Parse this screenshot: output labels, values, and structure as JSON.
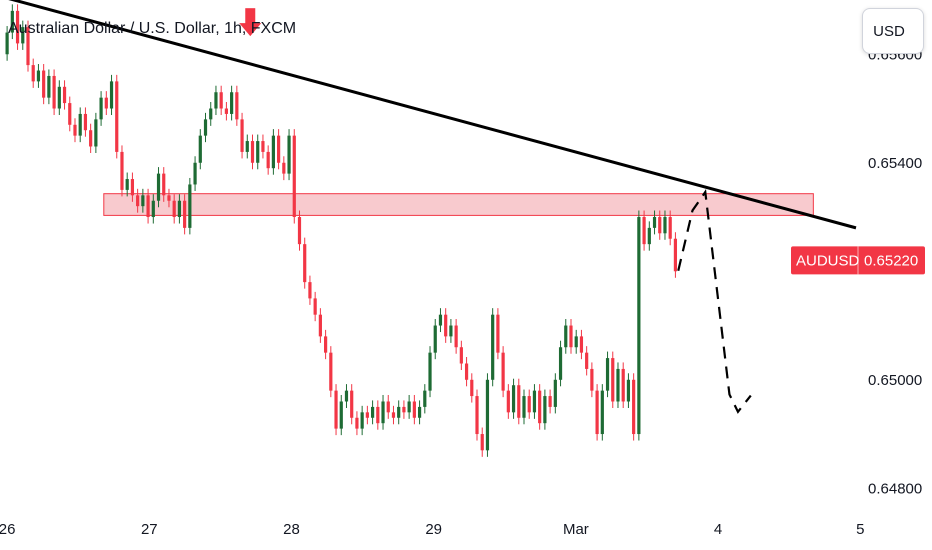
{
  "header": {
    "title": "Australian Dollar / U.S. Dollar, 1h, FXCM",
    "currency_button": "USD"
  },
  "price_badge": {
    "symbol": "AUDUSD",
    "price": "0.65220",
    "color": "#f23645"
  },
  "colors": {
    "up": "#1e6b34",
    "down": "#f23645",
    "zone_fill": "#f4a7ae",
    "zone_stroke": "#f23645",
    "trendline": "#000000",
    "arrow": "#f23645"
  },
  "chart_data": {
    "type": "candlestick",
    "title": "Australian Dollar / U.S. Dollar, 1h, FXCM",
    "y_tick_labels": [
      "0.65600",
      "0.65400",
      "0.65000",
      "0.64800"
    ],
    "ylim": [
      0.6476,
      0.657
    ],
    "x_tick_labels": [
      "26",
      "27",
      "28",
      "29",
      "Mar",
      "4",
      "5"
    ],
    "x_ticks_day": [
      0,
      1,
      2,
      3,
      4,
      5,
      6
    ],
    "xlim_day": [
      -0.05,
      5.97
    ],
    "candles": [
      [
        0.656,
        0.6564
      ],
      [
        0.6564,
        0.6568
      ],
      [
        0.6568,
        0.6562
      ],
      [
        0.6562,
        0.6565
      ],
      [
        0.6565,
        0.6558
      ],
      [
        0.6558,
        0.6555
      ],
      [
        0.6555,
        0.6557
      ],
      [
        0.6557,
        0.6552
      ],
      [
        0.6552,
        0.6556
      ],
      [
        0.6556,
        0.655
      ],
      [
        0.655,
        0.6554
      ],
      [
        0.6554,
        0.6551
      ],
      [
        0.6551,
        0.6547
      ],
      [
        0.6547,
        0.6545
      ],
      [
        0.6545,
        0.6549
      ],
      [
        0.6549,
        0.6546
      ],
      [
        0.6546,
        0.6543
      ],
      [
        0.6543,
        0.6548
      ],
      [
        0.6548,
        0.6552
      ],
      [
        0.6552,
        0.655
      ],
      [
        0.655,
        0.6555
      ],
      [
        0.6555,
        0.6542
      ],
      [
        0.6542,
        0.6535
      ],
      [
        0.6535,
        0.6537
      ],
      [
        0.6537,
        0.6534
      ],
      [
        0.6534,
        0.6532
      ],
      [
        0.6532,
        0.6534
      ],
      [
        0.6534,
        0.653
      ],
      [
        0.653,
        0.6533
      ],
      [
        0.6533,
        0.6538
      ],
      [
        0.6538,
        0.6534
      ],
      [
        0.6534,
        0.6533
      ],
      [
        0.6533,
        0.653
      ],
      [
        0.653,
        0.6533
      ],
      [
        0.6533,
        0.6528
      ],
      [
        0.6528,
        0.6536
      ],
      [
        0.6536,
        0.654
      ],
      [
        0.654,
        0.6545
      ],
      [
        0.6545,
        0.6548
      ],
      [
        0.6548,
        0.655
      ],
      [
        0.655,
        0.6553
      ],
      [
        0.6553,
        0.655
      ],
      [
        0.655,
        0.6549
      ],
      [
        0.6549,
        0.6553
      ],
      [
        0.6553,
        0.6548
      ],
      [
        0.6548,
        0.6542
      ],
      [
        0.6542,
        0.6544
      ],
      [
        0.6544,
        0.654
      ],
      [
        0.654,
        0.6544
      ],
      [
        0.6544,
        0.6542
      ],
      [
        0.6542,
        0.6539
      ],
      [
        0.6539,
        0.6545
      ],
      [
        0.6545,
        0.654
      ],
      [
        0.654,
        0.6538
      ],
      [
        0.6538,
        0.6545
      ],
      [
        0.6545,
        0.653
      ],
      [
        0.653,
        0.6525
      ],
      [
        0.6525,
        0.6518
      ],
      [
        0.6518,
        0.6515
      ],
      [
        0.6515,
        0.6512
      ],
      [
        0.6512,
        0.6508
      ],
      [
        0.6508,
        0.6505
      ],
      [
        0.6505,
        0.6498
      ],
      [
        0.6498,
        0.6491
      ],
      [
        0.6491,
        0.6496
      ],
      [
        0.6496,
        0.6498
      ],
      [
        0.6498,
        0.6493
      ],
      [
        0.6493,
        0.6491
      ],
      [
        0.6491,
        0.6494
      ],
      [
        0.6494,
        0.6493
      ],
      [
        0.6493,
        0.6495
      ],
      [
        0.6495,
        0.6492
      ],
      [
        0.6492,
        0.6496
      ],
      [
        0.6496,
        0.6494
      ],
      [
        0.6494,
        0.6493
      ],
      [
        0.6493,
        0.6495
      ],
      [
        0.6495,
        0.6494
      ],
      [
        0.6494,
        0.6496
      ],
      [
        0.6496,
        0.6493
      ],
      [
        0.6493,
        0.6495
      ],
      [
        0.6495,
        0.6498
      ],
      [
        0.6498,
        0.6505
      ],
      [
        0.6505,
        0.651
      ],
      [
        0.651,
        0.6512
      ],
      [
        0.6512,
        0.6508
      ],
      [
        0.6508,
        0.651
      ],
      [
        0.651,
        0.6506
      ],
      [
        0.6506,
        0.6503
      ],
      [
        0.6503,
        0.65
      ],
      [
        0.65,
        0.6497
      ],
      [
        0.6497,
        0.649
      ],
      [
        0.649,
        0.6487
      ],
      [
        0.6487,
        0.65
      ],
      [
        0.65,
        0.6512
      ],
      [
        0.6512,
        0.6505
      ],
      [
        0.6505,
        0.6498
      ],
      [
        0.6498,
        0.6494
      ],
      [
        0.6494,
        0.6499
      ],
      [
        0.6499,
        0.6493
      ],
      [
        0.6493,
        0.6497
      ],
      [
        0.6497,
        0.6494
      ],
      [
        0.6494,
        0.6498
      ],
      [
        0.6498,
        0.6492
      ],
      [
        0.6492,
        0.6497
      ],
      [
        0.6497,
        0.6495
      ],
      [
        0.6495,
        0.65
      ],
      [
        0.65,
        0.6506
      ],
      [
        0.6506,
        0.651
      ],
      [
        0.651,
        0.6506
      ],
      [
        0.6506,
        0.6508
      ],
      [
        0.6508,
        0.6505
      ],
      [
        0.6505,
        0.6502
      ],
      [
        0.6502,
        0.6498
      ],
      [
        0.6498,
        0.649
      ],
      [
        0.649,
        0.6498
      ],
      [
        0.6498,
        0.6504
      ],
      [
        0.6504,
        0.6496
      ],
      [
        0.6496,
        0.6502
      ],
      [
        0.6502,
        0.6496
      ],
      [
        0.6496,
        0.65
      ],
      [
        0.65,
        0.649
      ],
      [
        0.649,
        0.653
      ],
      [
        0.653,
        0.6525
      ],
      [
        0.6525,
        0.6528
      ],
      [
        0.6528,
        0.653
      ],
      [
        0.653,
        0.6527
      ],
      [
        0.6527,
        0.653
      ],
      [
        0.653,
        0.6526
      ],
      [
        0.6526,
        0.652
      ]
    ],
    "resistance_zone": {
      "low": 0.65303,
      "high": 0.65343,
      "start_day": 0.68,
      "end_day": 5.67
    },
    "trendline": {
      "start_day": -0.05,
      "start_price": 0.65707,
      "end_day": 5.97,
      "end_price": 0.6528
    },
    "projection": [
      [
        4.72,
        0.65201
      ],
      [
        4.82,
        0.65312
      ],
      [
        4.91,
        0.65346
      ],
      [
        5.08,
        0.64973
      ],
      [
        5.14,
        0.64941
      ],
      [
        5.23,
        0.64971
      ]
    ],
    "arrows_down": [
      [
        0.0,
        0.65731
      ],
      [
        1.71,
        0.65637
      ]
    ],
    "current_price": 0.6522
  }
}
